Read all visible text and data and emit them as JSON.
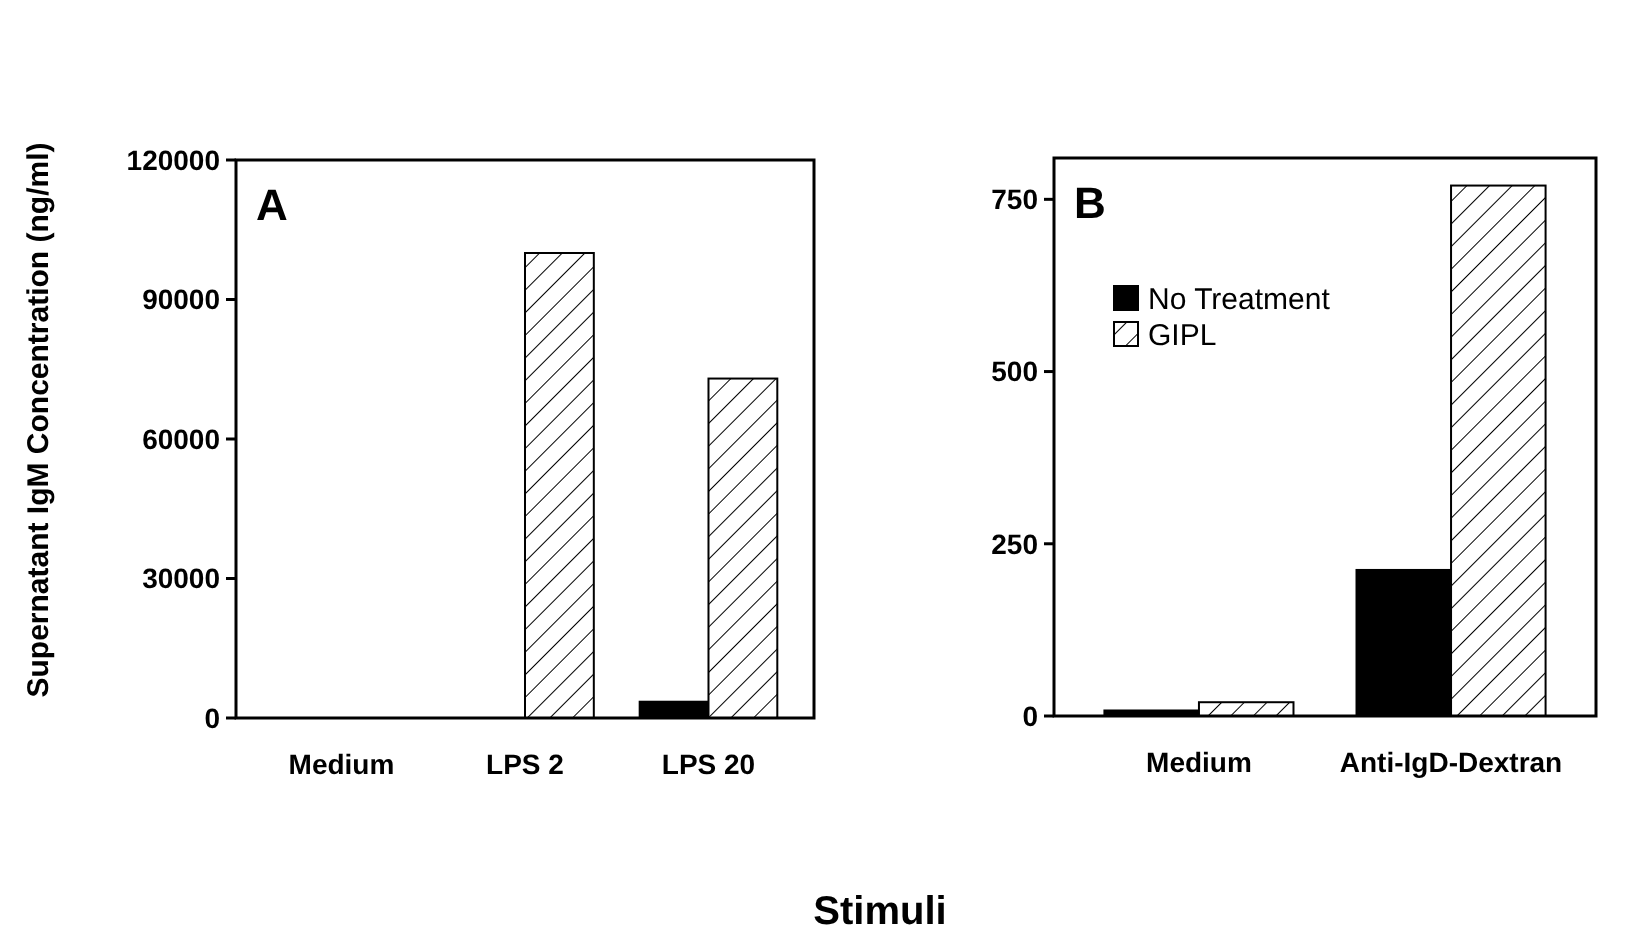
{
  "chart_data": [
    {
      "type": "bar",
      "ylabel": "Supernatant IgM Concentration (ng/ml)",
      "xlabel": "Stimuli",
      "annotations": [
        "A"
      ],
      "categories": [
        "Medium",
        "LPS 2",
        "LPS 20"
      ],
      "series": [
        {
          "color": "#000000",
          "values": [
            null,
            0,
            3500
          ]
        },
        {
          "color": "#ffffff",
          "values": [
            null,
            100000,
            73000
          ]
        }
      ],
      "ylim": [
        0,
        120000
      ],
      "yticks": [
        0,
        30000,
        60000,
        90000,
        120000
      ],
      "grid": false,
      "legend": false
    },
    {
      "type": "bar",
      "annotations": [
        "B"
      ],
      "categories": [
        "Medium",
        "Anti-IgD-Dextran"
      ],
      "series": [
        {
          "name": "No Treatment",
          "color": "#000000",
          "values": [
            8,
            212
          ]
        },
        {
          "name": "GIPL",
          "color": "#ffffff",
          "values": [
            20,
            770
          ]
        }
      ],
      "ylim": [
        0,
        810
      ],
      "yticks": [
        0,
        250,
        500,
        750
      ],
      "grid": false,
      "legend": "top left"
    }
  ]
}
